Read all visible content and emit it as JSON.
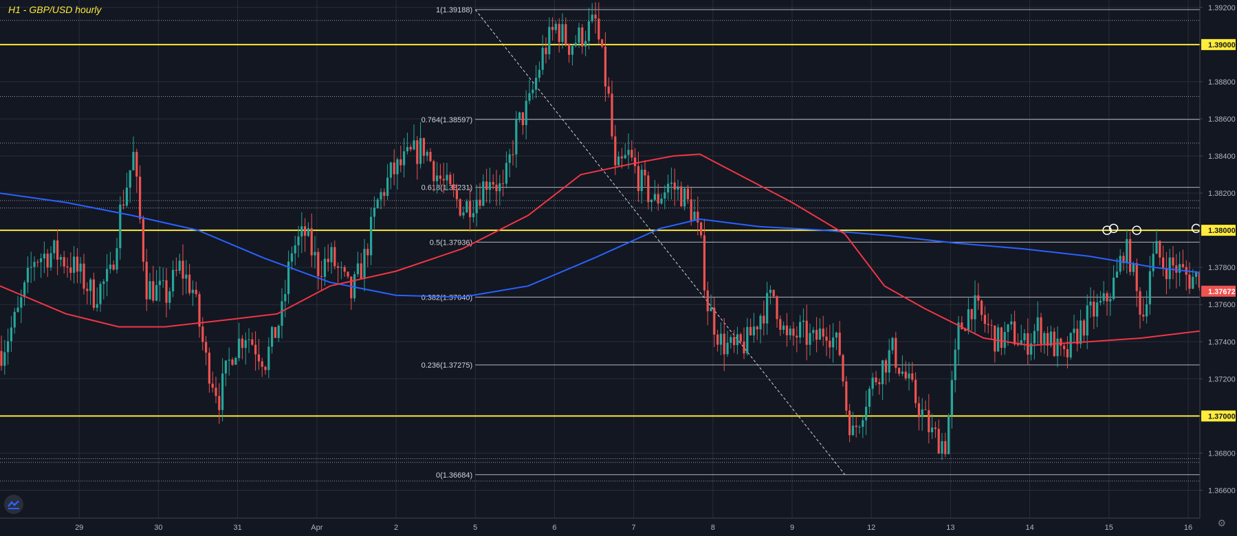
{
  "title": "H1 - GBP/USD hourly",
  "colors": {
    "background": "#131722",
    "grid": "#2a2e39",
    "axis_text": "#b2b5be",
    "up": "#26a69a",
    "down": "#ef5350",
    "support_resistance": "#ffeb3b",
    "fib": "#d1d4dc",
    "ma_fast": "#f23645",
    "ma_slow": "#2962ff",
    "marker": "#ffffff"
  },
  "chart_data": {
    "type": "candlestick",
    "ylim": [
      1.3645,
      1.3924
    ],
    "yticks": [
      1.366,
      1.368,
      1.37,
      1.372,
      1.374,
      1.376,
      1.378,
      1.38,
      1.382,
      1.384,
      1.386,
      1.388,
      1.39,
      1.392
    ],
    "ytick_labels": [
      "1.36600",
      "1.36800",
      "1.37000",
      "1.37200",
      "1.37400",
      "1.37600",
      "1.37800",
      "1.38000",
      "1.38200",
      "1.38400",
      "1.38600",
      "1.38800",
      "1.39000",
      "1.39200"
    ],
    "x_ticks": [
      {
        "label": "29",
        "bar": 24
      },
      {
        "label": "30",
        "bar": 48
      },
      {
        "label": "31",
        "bar": 72
      },
      {
        "label": "Apr",
        "bar": 96
      },
      {
        "label": "2",
        "bar": 120
      },
      {
        "label": "5",
        "bar": 144
      },
      {
        "label": "6",
        "bar": 168
      },
      {
        "label": "7",
        "bar": 192
      },
      {
        "label": "8",
        "bar": 216
      },
      {
        "label": "9",
        "bar": 240
      },
      {
        "label": "12",
        "bar": 264
      },
      {
        "label": "13",
        "bar": 288
      },
      {
        "label": "14",
        "bar": 312
      },
      {
        "label": "15",
        "bar": 336
      },
      {
        "label": "16",
        "bar": 360
      }
    ],
    "close_path": [
      [
        0,
        1.3735
      ],
      [
        5,
        1.3755
      ],
      [
        10,
        1.3785
      ],
      [
        16,
        1.3788
      ],
      [
        22,
        1.378
      ],
      [
        28,
        1.3765
      ],
      [
        33,
        1.3775
      ],
      [
        36,
        1.381
      ],
      [
        40,
        1.384
      ],
      [
        44,
        1.377
      ],
      [
        50,
        1.3765
      ],
      [
        54,
        1.378
      ],
      [
        58,
        1.3768
      ],
      [
        62,
        1.373
      ],
      [
        66,
        1.371
      ],
      [
        70,
        1.3735
      ],
      [
        74,
        1.3745
      ],
      [
        80,
        1.373
      ],
      [
        85,
        1.3755
      ],
      [
        88,
        1.379
      ],
      [
        92,
        1.3798
      ],
      [
        96,
        1.378
      ],
      [
        100,
        1.3785
      ],
      [
        106,
        1.3765
      ],
      [
        110,
        1.3785
      ],
      [
        114,
        1.3815
      ],
      [
        118,
        1.383
      ],
      [
        124,
        1.384
      ],
      [
        128,
        1.3845
      ],
      [
        132,
        1.383
      ],
      [
        136,
        1.382
      ],
      [
        140,
        1.3812
      ],
      [
        144,
        1.3818
      ],
      [
        148,
        1.383
      ],
      [
        152,
        1.382
      ],
      [
        156,
        1.3855
      ],
      [
        160,
        1.3868
      ],
      [
        164,
        1.3895
      ],
      [
        168,
        1.391
      ],
      [
        172,
        1.39
      ],
      [
        176,
        1.3905
      ],
      [
        180,
        1.3912
      ],
      [
        184,
        1.387
      ],
      [
        186,
        1.383
      ],
      [
        190,
        1.384
      ],
      [
        194,
        1.3825
      ],
      [
        198,
        1.3815
      ],
      [
        202,
        1.3825
      ],
      [
        206,
        1.382
      ],
      [
        210,
        1.3808
      ],
      [
        212,
        1.379
      ],
      [
        214,
        1.376
      ],
      [
        218,
        1.374
      ],
      [
        222,
        1.3735
      ],
      [
        226,
        1.374
      ],
      [
        230,
        1.3755
      ],
      [
        234,
        1.3765
      ],
      [
        238,
        1.374
      ],
      [
        242,
        1.3745
      ],
      [
        246,
        1.374
      ],
      [
        250,
        1.3748
      ],
      [
        254,
        1.3735
      ],
      [
        256,
        1.3705
      ],
      [
        258,
        1.369
      ],
      [
        262,
        1.371
      ],
      [
        266,
        1.3725
      ],
      [
        270,
        1.3735
      ],
      [
        274,
        1.372
      ],
      [
        278,
        1.3705
      ],
      [
        282,
        1.369
      ],
      [
        286,
        1.3685
      ],
      [
        288,
        1.3715
      ],
      [
        290,
        1.3745
      ],
      [
        294,
        1.376
      ],
      [
        298,
        1.375
      ],
      [
        302,
        1.374
      ],
      [
        306,
        1.3745
      ],
      [
        310,
        1.3738
      ],
      [
        314,
        1.3748
      ],
      [
        318,
        1.374
      ],
      [
        322,
        1.373
      ],
      [
        326,
        1.3745
      ],
      [
        330,
        1.3755
      ],
      [
        334,
        1.376
      ],
      [
        338,
        1.3775
      ],
      [
        340,
        1.379
      ],
      [
        342,
        1.3785
      ],
      [
        344,
        1.3765
      ],
      [
        346,
        1.3755
      ],
      [
        348,
        1.378
      ],
      [
        350,
        1.3788
      ],
      [
        352,
        1.3782
      ],
      [
        356,
        1.378
      ],
      [
        360,
        1.3774
      ],
      [
        364,
        1.3776
      ],
      [
        366,
        1.379
      ],
      [
        368,
        1.3767
      ]
    ],
    "sma_fast": [
      [
        0,
        1.377
      ],
      [
        20,
        1.3755
      ],
      [
        36,
        1.3748
      ],
      [
        50,
        1.3748
      ],
      [
        70,
        1.3752
      ],
      [
        84,
        1.3755
      ],
      [
        100,
        1.377
      ],
      [
        120,
        1.3778
      ],
      [
        140,
        1.379
      ],
      [
        160,
        1.3808
      ],
      [
        176,
        1.383
      ],
      [
        192,
        1.3836
      ],
      [
        204,
        1.384
      ],
      [
        212,
        1.3841
      ],
      [
        226,
        1.3828
      ],
      [
        240,
        1.3815
      ],
      [
        256,
        1.3798
      ],
      [
        268,
        1.377
      ],
      [
        280,
        1.3758
      ],
      [
        298,
        1.3742
      ],
      [
        312,
        1.3738
      ],
      [
        330,
        1.374
      ],
      [
        346,
        1.3742
      ],
      [
        360,
        1.3745
      ],
      [
        370,
        1.3747
      ]
    ],
    "sma_slow": [
      [
        0,
        1.382
      ],
      [
        20,
        1.3815
      ],
      [
        40,
        1.3808
      ],
      [
        60,
        1.38
      ],
      [
        80,
        1.3785
      ],
      [
        100,
        1.3772
      ],
      [
        120,
        1.3765
      ],
      [
        140,
        1.3764
      ],
      [
        160,
        1.377
      ],
      [
        180,
        1.3785
      ],
      [
        200,
        1.3801
      ],
      [
        212,
        1.3806
      ],
      [
        230,
        1.3802
      ],
      [
        250,
        1.38
      ],
      [
        270,
        1.3797
      ],
      [
        290,
        1.3793
      ],
      [
        310,
        1.379
      ],
      [
        330,
        1.3786
      ],
      [
        350,
        1.378
      ],
      [
        370,
        1.3776
      ]
    ],
    "horizontal_levels": [
      {
        "price": 1.39,
        "label": "1.39000"
      },
      {
        "price": 1.38,
        "label": "1.38000"
      },
      {
        "price": 1.37,
        "label": "1.37000"
      }
    ],
    "fib_levels": [
      {
        "ratio_label": "1(1.39188)",
        "price": 1.39188
      },
      {
        "ratio_label": "0.764(1.38597)",
        "price": 1.38597
      },
      {
        "ratio_label": "0.618(1.38231)",
        "price": 1.38231
      },
      {
        "ratio_label": "0.5(1.37936)",
        "price": 1.37936
      },
      {
        "ratio_label": "0.382(1.37640)",
        "price": 1.3764
      },
      {
        "ratio_label": "0.236(1.37275)",
        "price": 1.37275
      },
      {
        "ratio_label": "0(1.36684)",
        "price": 1.36684
      }
    ],
    "extra_levels": [
      1.3913,
      1.3872,
      1.3847,
      1.3816,
      1.3812,
      1.3677,
      1.3675,
      1.3665
    ],
    "fib_start_bar": 144,
    "fib_end_bar": 262,
    "trend_line": {
      "from": [
        144,
        1.39188
      ],
      "to": [
        256,
        1.36684
      ]
    },
    "markers": [
      {
        "bar": 335,
        "price": 1.38
      },
      {
        "bar": 337,
        "price": 1.3801
      },
      {
        "bar": 344,
        "price": 1.38
      },
      {
        "bar": 362,
        "price": 1.3801
      }
    ],
    "current_price": {
      "value": 1.37672,
      "label": "1.37672"
    }
  }
}
